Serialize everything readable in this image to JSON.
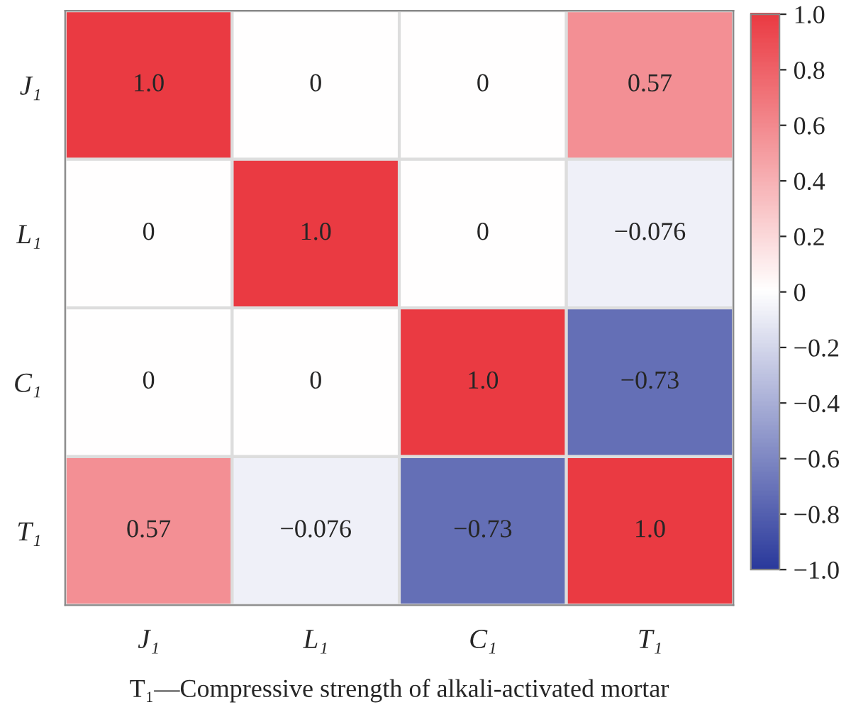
{
  "chart_data": {
    "type": "heatmap",
    "categories": [
      "J₁",
      "L₁",
      "C₁",
      "T₁"
    ],
    "y_categories": [
      "J₁",
      "L₁",
      "C₁",
      "T₁"
    ],
    "cells": [
      [
        1.0,
        0,
        0,
        0.57
      ],
      [
        0,
        1.0,
        0,
        -0.076
      ],
      [
        0,
        0,
        1.0,
        -0.73
      ],
      [
        0.57,
        -0.076,
        -0.73,
        1.0
      ]
    ],
    "cell_labels": [
      [
        "1.0",
        "0",
        "0",
        "0.57"
      ],
      [
        "0",
        "1.0",
        "0",
        "−0.076"
      ],
      [
        "0",
        "0",
        "1.0",
        "−0.73"
      ],
      [
        "0.57",
        "−0.076",
        "−0.73",
        "1.0"
      ]
    ],
    "clim": [
      -1,
      1
    ],
    "cticks": [
      {
        "value": 1.0,
        "label": "1.0"
      },
      {
        "value": 0.8,
        "label": "0.8"
      },
      {
        "value": 0.6,
        "label": "0.6"
      },
      {
        "value": 0.4,
        "label": "0.4"
      },
      {
        "value": 0.2,
        "label": "0.2"
      },
      {
        "value": 0,
        "label": "0"
      },
      {
        "value": -0.2,
        "label": "−0.2"
      },
      {
        "value": -0.4,
        "label": "−0.4"
      },
      {
        "value": -0.6,
        "label": "−0.6"
      },
      {
        "value": -0.8,
        "label": "−0.8"
      },
      {
        "value": -1.0,
        "label": "−1.0"
      }
    ],
    "annotations": [
      "T₁—Compressive strength of alkali-activated mortar"
    ]
  }
}
